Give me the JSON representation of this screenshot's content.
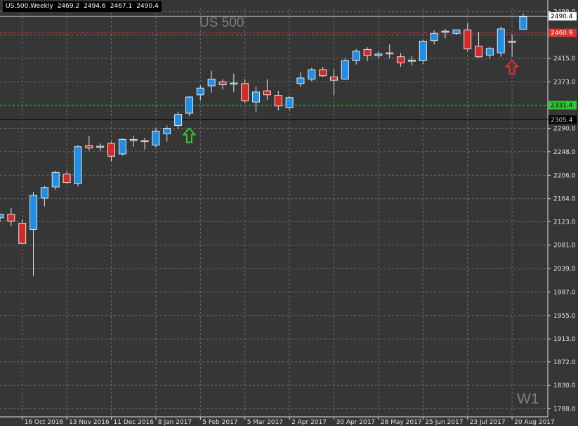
{
  "header": {
    "symbol": "US.500,Weekly",
    "open": "2469.2",
    "high": "2494.6",
    "low": "2467.1",
    "close": "2490.4"
  },
  "watermark_title": "US 500",
  "watermark_period": "W1",
  "colors": {
    "background": "#363636",
    "grid": "#6e6e6e",
    "bull": "#1e8fe6",
    "bear": "#d42a2a",
    "wick": "#e6e6e6",
    "axis_text": "#e0e0e0",
    "price_line": "#a8a8a8",
    "resistance": "#e52c2c",
    "support": "#2ec82e"
  },
  "chart_data": {
    "type": "candlestick",
    "ylim": [
      1773.6,
      2504.5
    ],
    "y_ticks": [
      "2499.0",
      "2457.0",
      "2415.0",
      "2373.0",
      "2331.0",
      "2290.0",
      "2248.0",
      "2206.0",
      "2164.0",
      "2123.0",
      "2081.0",
      "2039.0",
      "1997.0",
      "1955.0",
      "1913.0",
      "1872.0",
      "1830.0",
      "1788.0"
    ],
    "x_ticks": [
      {
        "label": "16 Oct 2016",
        "index": 2
      },
      {
        "label": "13 Nov 2016",
        "index": 6
      },
      {
        "label": "11 Dec 2016",
        "index": 10
      },
      {
        "label": "8 Jan 2017",
        "index": 14
      },
      {
        "label": "5 Feb 2017",
        "index": 18
      },
      {
        "label": "5 Mar 2017",
        "index": 22
      },
      {
        "label": "2 Apr 2017",
        "index": 26
      },
      {
        "label": "30 Apr 2017",
        "index": 30
      },
      {
        "label": "28 May 2017",
        "index": 34
      },
      {
        "label": "25 Jun 2017",
        "index": 38
      },
      {
        "label": "23 Jul 2017",
        "index": 42
      },
      {
        "label": "20 Aug 2017",
        "index": 46
      }
    ],
    "candles": [
      {
        "o": 2130,
        "h": 2134,
        "l": 2123,
        "c": 2136
      },
      {
        "o": 2136,
        "h": 2148,
        "l": 2115,
        "c": 2124
      },
      {
        "o": 2120,
        "h": 2127,
        "l": 2084,
        "c": 2084
      },
      {
        "o": 2109,
        "h": 2176,
        "l": 2026,
        "c": 2170
      },
      {
        "o": 2165,
        "h": 2187,
        "l": 2150,
        "c": 2184
      },
      {
        "o": 2185,
        "h": 2214,
        "l": 2180,
        "c": 2211
      },
      {
        "o": 2208,
        "h": 2213,
        "l": 2191,
        "c": 2193
      },
      {
        "o": 2191,
        "h": 2260,
        "l": 2186,
        "c": 2257
      },
      {
        "o": 2259,
        "h": 2276,
        "l": 2250,
        "c": 2255
      },
      {
        "o": 2257,
        "h": 2263,
        "l": 2249,
        "c": 2258
      },
      {
        "o": 2263,
        "h": 2266,
        "l": 2231,
        "c": 2240
      },
      {
        "o": 2244,
        "h": 2272,
        "l": 2241,
        "c": 2270
      },
      {
        "o": 2270,
        "h": 2276,
        "l": 2257,
        "c": 2268
      },
      {
        "o": 2268,
        "h": 2273,
        "l": 2252,
        "c": 2266
      },
      {
        "o": 2260,
        "h": 2290,
        "l": 2256,
        "c": 2285
      },
      {
        "o": 2280,
        "h": 2295,
        "l": 2266,
        "c": 2290
      },
      {
        "o": 2295,
        "h": 2320,
        "l": 2289,
        "c": 2315
      },
      {
        "o": 2317,
        "h": 2348,
        "l": 2312,
        "c": 2346
      },
      {
        "o": 2350,
        "h": 2367,
        "l": 2340,
        "c": 2362
      },
      {
        "o": 2366,
        "h": 2393,
        "l": 2354,
        "c": 2378
      },
      {
        "o": 2373,
        "h": 2378,
        "l": 2360,
        "c": 2368
      },
      {
        "o": 2369,
        "h": 2388,
        "l": 2355,
        "c": 2371
      },
      {
        "o": 2370,
        "h": 2378,
        "l": 2335,
        "c": 2339
      },
      {
        "o": 2337,
        "h": 2365,
        "l": 2318,
        "c": 2355
      },
      {
        "o": 2357,
        "h": 2378,
        "l": 2341,
        "c": 2350
      },
      {
        "o": 2349,
        "h": 2357,
        "l": 2322,
        "c": 2330
      },
      {
        "o": 2327,
        "h": 2348,
        "l": 2323,
        "c": 2345
      },
      {
        "o": 2370,
        "h": 2390,
        "l": 2364,
        "c": 2380
      },
      {
        "o": 2378,
        "h": 2398,
        "l": 2374,
        "c": 2395
      },
      {
        "o": 2395,
        "h": 2400,
        "l": 2382,
        "c": 2384
      },
      {
        "o": 2382,
        "h": 2396,
        "l": 2349,
        "c": 2376
      },
      {
        "o": 2378,
        "h": 2415,
        "l": 2377,
        "c": 2411
      },
      {
        "o": 2411,
        "h": 2432,
        "l": 2404,
        "c": 2428
      },
      {
        "o": 2431,
        "h": 2435,
        "l": 2410,
        "c": 2420
      },
      {
        "o": 2420,
        "h": 2428,
        "l": 2415,
        "c": 2423
      },
      {
        "o": 2425,
        "h": 2440,
        "l": 2415,
        "c": 2424
      },
      {
        "o": 2418,
        "h": 2425,
        "l": 2400,
        "c": 2407
      },
      {
        "o": 2411,
        "h": 2420,
        "l": 2402,
        "c": 2412
      },
      {
        "o": 2411,
        "h": 2448,
        "l": 2405,
        "c": 2446
      },
      {
        "o": 2447,
        "h": 2465,
        "l": 2440,
        "c": 2460
      },
      {
        "o": 2462,
        "h": 2468,
        "l": 2451,
        "c": 2464
      },
      {
        "o": 2460,
        "h": 2465,
        "l": 2457,
        "c": 2466
      },
      {
        "o": 2466,
        "h": 2478,
        "l": 2428,
        "c": 2432
      },
      {
        "o": 2437,
        "h": 2462,
        "l": 2416,
        "c": 2418
      },
      {
        "o": 2421,
        "h": 2436,
        "l": 2415,
        "c": 2433
      },
      {
        "o": 2425,
        "h": 2472,
        "l": 2418,
        "c": 2468
      },
      {
        "o": 2446,
        "h": 2458,
        "l": 2418,
        "c": 2444
      },
      {
        "o": 2467,
        "h": 2495,
        "l": 2467,
        "c": 2490
      }
    ],
    "price_lines": [
      {
        "name": "current-price-line",
        "value": 2490.4,
        "label": "2490.4"
      },
      {
        "name": "resistance-line",
        "value": 2460.9,
        "label": "2460.9"
      },
      {
        "name": "support-line",
        "value": 2331.4,
        "label": "2331.4"
      },
      {
        "name": "level-line",
        "value": 2305.4,
        "label": "2305.4"
      }
    ],
    "markers": [
      {
        "name": "buy-arrow-icon",
        "direction": "up",
        "color": "green",
        "index": 17,
        "value": 2290
      },
      {
        "name": "sell-arrow-icon",
        "direction": "up",
        "color": "red",
        "index": 46,
        "value": 2412
      }
    ],
    "grid": true
  }
}
